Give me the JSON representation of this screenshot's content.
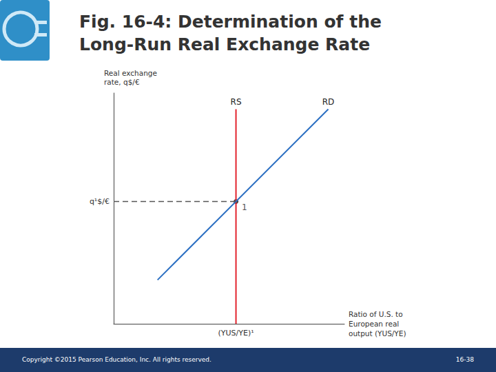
{
  "chart_data": {
    "type": "line",
    "title": "Fig. 16-4: Determination of the\nLong-Run Real Exchange Rate",
    "x_label": "Ratio of U.S. to\nEuropean real\noutput (YUS/YE)",
    "y_label": "Real exchange\nrate, q$/€",
    "xlim": [
      0,
      10
    ],
    "ylim": [
      0,
      10
    ],
    "xticks": [
      {
        "value": 5.3,
        "label": "(YUS/YE)¹"
      }
    ],
    "yticks": [
      {
        "value": 5.3,
        "label": "q¹$/€"
      }
    ],
    "grid": false,
    "series": [
      {
        "name": "RS",
        "color": "#e3232c",
        "values": [
          [
            5.3,
            0
          ],
          [
            5.3,
            9.3
          ]
        ]
      },
      {
        "name": "RD",
        "color": "#2b6fc2",
        "values": [
          [
            1.9,
            1.9
          ],
          [
            9.3,
            9.3
          ]
        ]
      },
      {
        "color": "#555555",
        "line_style": "dashed",
        "values": [
          [
            0,
            5.3
          ],
          [
            5.3,
            5.3
          ]
        ]
      },
      {
        "name": "1",
        "type": "scatter",
        "marker": "circle",
        "color": "#111111",
        "values": [
          [
            5.3,
            5.3
          ]
        ]
      }
    ]
  },
  "slide": {
    "footer": "Copyright ©2015 Pearson Education, Inc. All rights reserved.",
    "page": "16-38"
  }
}
